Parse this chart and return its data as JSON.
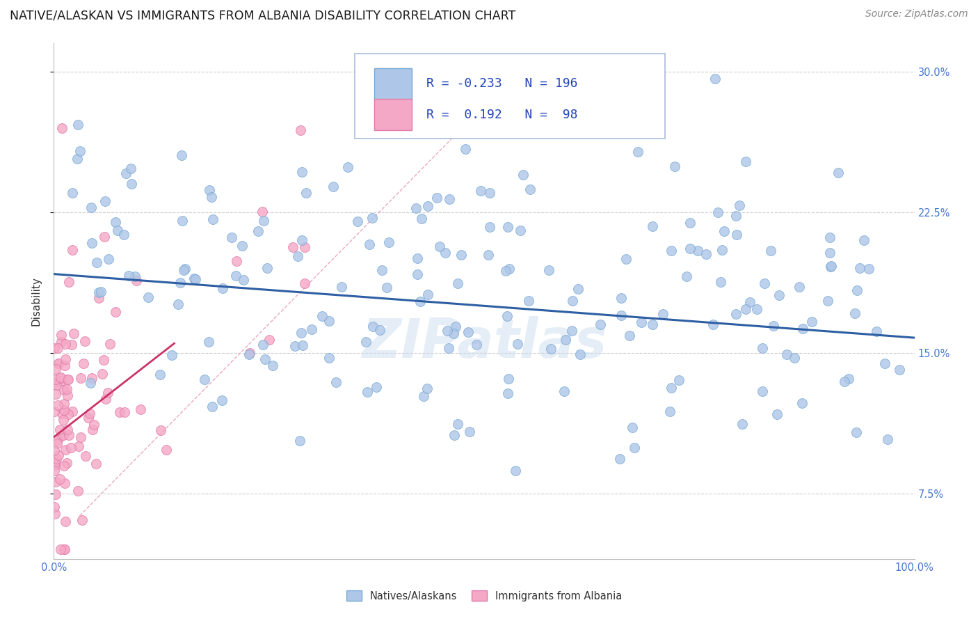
{
  "title": "NATIVE/ALASKAN VS IMMIGRANTS FROM ALBANIA DISABILITY CORRELATION CHART",
  "source": "Source: ZipAtlas.com",
  "ylabel": "Disability",
  "xlim": [
    0.0,
    1.0
  ],
  "ylim": [
    0.04,
    0.315
  ],
  "yticks": [
    0.075,
    0.15,
    0.225,
    0.3
  ],
  "ytick_labels": [
    "7.5%",
    "15.0%",
    "22.5%",
    "30.0%"
  ],
  "xticks": [
    0.0,
    1.0
  ],
  "xtick_labels": [
    "0.0%",
    "100.0%"
  ],
  "native_color": "#aec6e8",
  "native_edge_color": "#7aaad4",
  "immigrant_color": "#f5a8c5",
  "immigrant_edge_color": "#e07aaa",
  "native_line_color": "#2e5fa3",
  "immigrant_line_color": "#cc3366",
  "diag_line_color": "#e8a0b8",
  "tick_color": "#4477cc",
  "grid_color": "#cccccc",
  "background_color": "#ffffff",
  "watermark": "ZIPatlas",
  "legend_native_color": "#aec6e8",
  "legend_native_edge": "#7aaad4",
  "legend_imm_color": "#f5a8c5",
  "legend_imm_edge": "#e07aaa",
  "legend_border_color": "#aabbdd",
  "R_native": -0.233,
  "N_native": 196,
  "R_immigrant": 0.192,
  "N_immigrant": 98,
  "title_fontsize": 12.5,
  "ylabel_fontsize": 11,
  "tick_fontsize": 10.5,
  "legend_fontsize": 13,
  "source_fontsize": 10,
  "marker_size": 100,
  "native_line_start_y": 0.192,
  "native_line_end_y": 0.158,
  "imm_line_start_x": 0.0,
  "imm_line_start_y": 0.105,
  "imm_line_end_x": 0.14,
  "imm_line_end_y": 0.155
}
